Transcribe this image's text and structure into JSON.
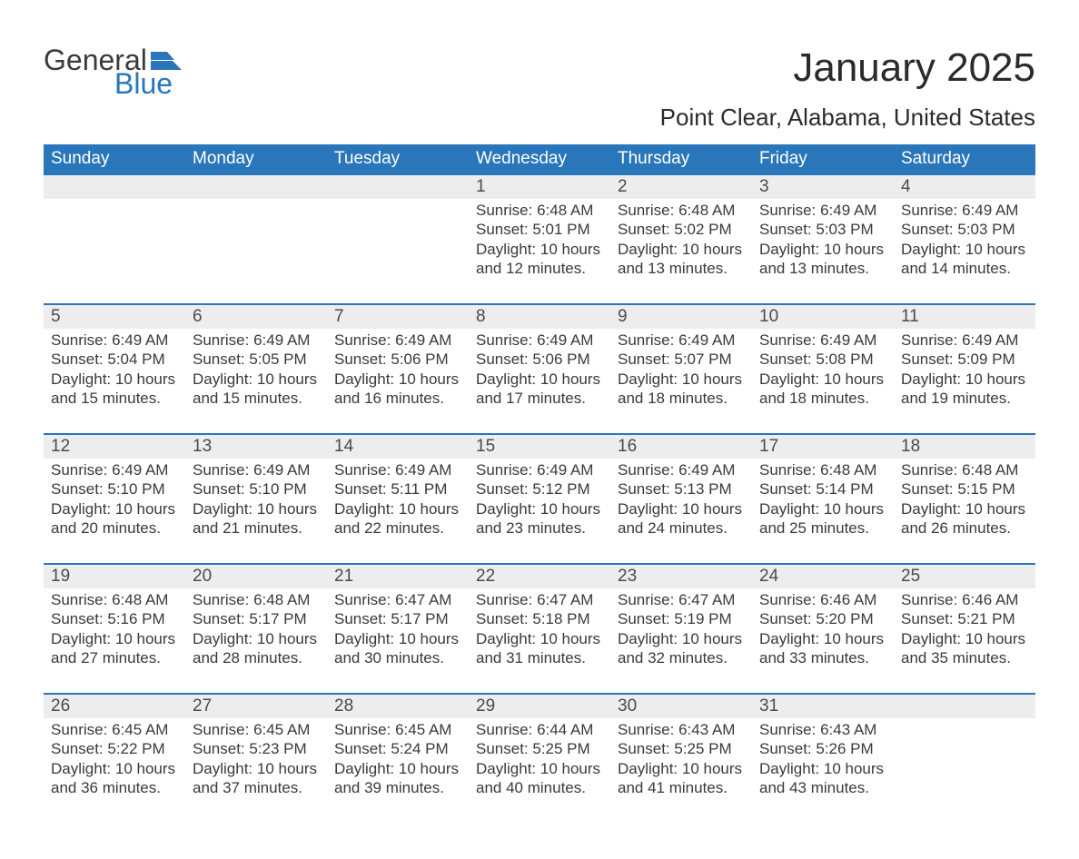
{
  "logo": {
    "word1": "General",
    "word2": "Blue"
  },
  "title": "January 2025",
  "location": "Point Clear, Alabama, United States",
  "colors": {
    "header_bg": "#2a76bb",
    "header_text": "#ffffff",
    "daynum_bg": "#ededed",
    "row_border": "#2a76bb",
    "text": "#323232",
    "logo_blue": "#2a76bb"
  },
  "weekdays": [
    "Sunday",
    "Monday",
    "Tuesday",
    "Wednesday",
    "Thursday",
    "Friday",
    "Saturday"
  ],
  "weeks": [
    [
      null,
      null,
      null,
      {
        "n": "1",
        "sunrise": "6:48 AM",
        "sunset": "5:01 PM",
        "daylight": "10 hours and 12 minutes."
      },
      {
        "n": "2",
        "sunrise": "6:48 AM",
        "sunset": "5:02 PM",
        "daylight": "10 hours and 13 minutes."
      },
      {
        "n": "3",
        "sunrise": "6:49 AM",
        "sunset": "5:03 PM",
        "daylight": "10 hours and 13 minutes."
      },
      {
        "n": "4",
        "sunrise": "6:49 AM",
        "sunset": "5:03 PM",
        "daylight": "10 hours and 14 minutes."
      }
    ],
    [
      {
        "n": "5",
        "sunrise": "6:49 AM",
        "sunset": "5:04 PM",
        "daylight": "10 hours and 15 minutes."
      },
      {
        "n": "6",
        "sunrise": "6:49 AM",
        "sunset": "5:05 PM",
        "daylight": "10 hours and 15 minutes."
      },
      {
        "n": "7",
        "sunrise": "6:49 AM",
        "sunset": "5:06 PM",
        "daylight": "10 hours and 16 minutes."
      },
      {
        "n": "8",
        "sunrise": "6:49 AM",
        "sunset": "5:06 PM",
        "daylight": "10 hours and 17 minutes."
      },
      {
        "n": "9",
        "sunrise": "6:49 AM",
        "sunset": "5:07 PM",
        "daylight": "10 hours and 18 minutes."
      },
      {
        "n": "10",
        "sunrise": "6:49 AM",
        "sunset": "5:08 PM",
        "daylight": "10 hours and 18 minutes."
      },
      {
        "n": "11",
        "sunrise": "6:49 AM",
        "sunset": "5:09 PM",
        "daylight": "10 hours and 19 minutes."
      }
    ],
    [
      {
        "n": "12",
        "sunrise": "6:49 AM",
        "sunset": "5:10 PM",
        "daylight": "10 hours and 20 minutes."
      },
      {
        "n": "13",
        "sunrise": "6:49 AM",
        "sunset": "5:10 PM",
        "daylight": "10 hours and 21 minutes."
      },
      {
        "n": "14",
        "sunrise": "6:49 AM",
        "sunset": "5:11 PM",
        "daylight": "10 hours and 22 minutes."
      },
      {
        "n": "15",
        "sunrise": "6:49 AM",
        "sunset": "5:12 PM",
        "daylight": "10 hours and 23 minutes."
      },
      {
        "n": "16",
        "sunrise": "6:49 AM",
        "sunset": "5:13 PM",
        "daylight": "10 hours and 24 minutes."
      },
      {
        "n": "17",
        "sunrise": "6:48 AM",
        "sunset": "5:14 PM",
        "daylight": "10 hours and 25 minutes."
      },
      {
        "n": "18",
        "sunrise": "6:48 AM",
        "sunset": "5:15 PM",
        "daylight": "10 hours and 26 minutes."
      }
    ],
    [
      {
        "n": "19",
        "sunrise": "6:48 AM",
        "sunset": "5:16 PM",
        "daylight": "10 hours and 27 minutes."
      },
      {
        "n": "20",
        "sunrise": "6:48 AM",
        "sunset": "5:17 PM",
        "daylight": "10 hours and 28 minutes."
      },
      {
        "n": "21",
        "sunrise": "6:47 AM",
        "sunset": "5:17 PM",
        "daylight": "10 hours and 30 minutes."
      },
      {
        "n": "22",
        "sunrise": "6:47 AM",
        "sunset": "5:18 PM",
        "daylight": "10 hours and 31 minutes."
      },
      {
        "n": "23",
        "sunrise": "6:47 AM",
        "sunset": "5:19 PM",
        "daylight": "10 hours and 32 minutes."
      },
      {
        "n": "24",
        "sunrise": "6:46 AM",
        "sunset": "5:20 PM",
        "daylight": "10 hours and 33 minutes."
      },
      {
        "n": "25",
        "sunrise": "6:46 AM",
        "sunset": "5:21 PM",
        "daylight": "10 hours and 35 minutes."
      }
    ],
    [
      {
        "n": "26",
        "sunrise": "6:45 AM",
        "sunset": "5:22 PM",
        "daylight": "10 hours and 36 minutes."
      },
      {
        "n": "27",
        "sunrise": "6:45 AM",
        "sunset": "5:23 PM",
        "daylight": "10 hours and 37 minutes."
      },
      {
        "n": "28",
        "sunrise": "6:45 AM",
        "sunset": "5:24 PM",
        "daylight": "10 hours and 39 minutes."
      },
      {
        "n": "29",
        "sunrise": "6:44 AM",
        "sunset": "5:25 PM",
        "daylight": "10 hours and 40 minutes."
      },
      {
        "n": "30",
        "sunrise": "6:43 AM",
        "sunset": "5:25 PM",
        "daylight": "10 hours and 41 minutes."
      },
      {
        "n": "31",
        "sunrise": "6:43 AM",
        "sunset": "5:26 PM",
        "daylight": "10 hours and 43 minutes."
      },
      null
    ]
  ],
  "labels": {
    "sunrise": "Sunrise: ",
    "sunset": "Sunset: ",
    "daylight": "Daylight: "
  }
}
